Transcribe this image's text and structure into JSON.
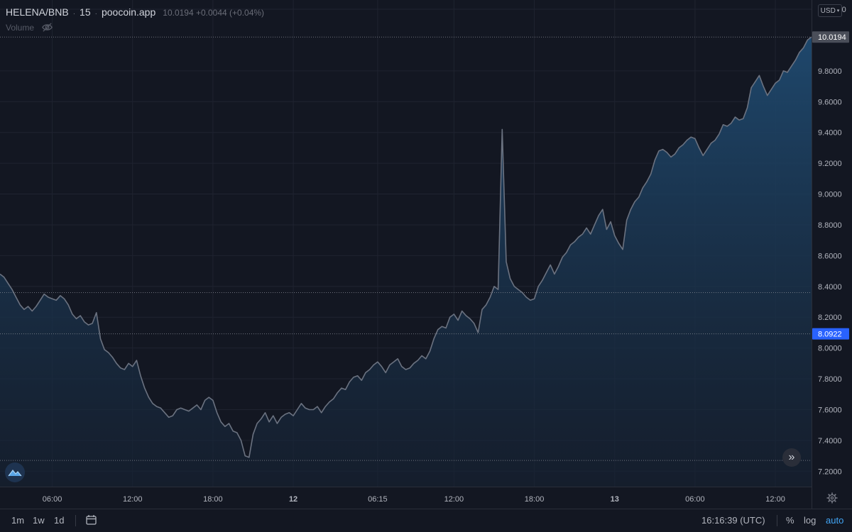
{
  "header": {
    "pair": "HELENA/BNB",
    "interval": "15",
    "source": "poocoin.app",
    "quote": "10.0194 +0.0044 (+0.04%)",
    "volume_label": "Volume"
  },
  "currency": "USD",
  "price_markers": {
    "last_price": "10.0194",
    "crosshair_price": "8.0922"
  },
  "bottom_bar": {
    "ranges": [
      "1m",
      "1w",
      "1d"
    ],
    "time": "16:16:39 (UTC)",
    "percent": "%",
    "log": "log",
    "auto": "auto"
  },
  "colors": {
    "background": "#131722",
    "line": "#6b7280",
    "area_top": "#1e4466",
    "accent": "#2962ff",
    "last_price_badge": "#4a4e59",
    "crosshair_badge": "#2962ff"
  },
  "chart_data": {
    "type": "area",
    "title": "",
    "xlabel": "",
    "ylabel": "",
    "ylim": [
      7.1,
      10.26
    ],
    "y_ticks": [
      "10.2000",
      "9.8000",
      "9.6000",
      "9.4000",
      "9.2000",
      "9.0000",
      "8.8000",
      "8.6000",
      "8.4000",
      "8.2000",
      "8.0000",
      "7.8000",
      "7.6000",
      "7.4000",
      "7.2000"
    ],
    "x_ticks": [
      "06:00",
      "12:00",
      "18:00",
      "12",
      "06:15",
      "12:00",
      "18:00",
      "13",
      "06:00",
      "12:00"
    ],
    "x_tick_bold": [
      false,
      false,
      false,
      true,
      false,
      false,
      false,
      true,
      false,
      false
    ],
    "x_tick_index": [
      13,
      33,
      53,
      73,
      94,
      113,
      133,
      153,
      173,
      193
    ],
    "horizontal_lines": [
      10.0194,
      8.36,
      8.0922,
      7.27
    ],
    "series": [
      {
        "values": [
          8.48,
          8.46,
          8.42,
          8.38,
          8.33,
          8.28,
          8.25,
          8.27,
          8.24,
          8.27,
          8.31,
          8.35,
          8.33,
          8.32,
          8.31,
          8.34,
          8.32,
          8.28,
          8.22,
          8.19,
          8.21,
          8.17,
          8.15,
          8.16,
          8.23,
          8.06,
          7.99,
          7.97,
          7.94,
          7.9,
          7.87,
          7.86,
          7.9,
          7.88,
          7.92,
          7.82,
          7.74,
          7.68,
          7.64,
          7.62,
          7.61,
          7.58,
          7.55,
          7.56,
          7.6,
          7.61,
          7.6,
          7.59,
          7.61,
          7.63,
          7.6,
          7.66,
          7.68,
          7.66,
          7.58,
          7.52,
          7.49,
          7.51,
          7.46,
          7.45,
          7.4,
          7.3,
          7.29,
          7.44,
          7.51,
          7.54,
          7.58,
          7.52,
          7.56,
          7.51,
          7.55,
          7.57,
          7.58,
          7.56,
          7.6,
          7.64,
          7.61,
          7.6,
          7.6,
          7.62,
          7.58,
          7.62,
          7.65,
          7.67,
          7.71,
          7.74,
          7.73,
          7.78,
          7.81,
          7.82,
          7.79,
          7.84,
          7.86,
          7.89,
          7.91,
          7.88,
          7.84,
          7.89,
          7.91,
          7.93,
          7.88,
          7.86,
          7.87,
          7.9,
          7.92,
          7.95,
          7.93,
          7.98,
          8.06,
          8.12,
          8.14,
          8.13,
          8.2,
          8.22,
          8.18,
          8.24,
          8.21,
          8.19,
          8.16,
          8.1,
          8.25,
          8.28,
          8.33,
          8.4,
          8.38,
          9.42,
          8.56,
          8.45,
          8.4,
          8.38,
          8.36,
          8.33,
          8.31,
          8.32,
          8.4,
          8.44,
          8.49,
          8.54,
          8.48,
          8.53,
          8.59,
          8.62,
          8.67,
          8.69,
          8.72,
          8.74,
          8.78,
          8.74,
          8.8,
          8.86,
          8.9,
          8.77,
          8.82,
          8.73,
          8.68,
          8.64,
          8.83,
          8.9,
          8.95,
          8.98,
          9.04,
          9.08,
          9.13,
          9.22,
          9.28,
          9.29,
          9.27,
          9.24,
          9.26,
          9.3,
          9.32,
          9.35,
          9.37,
          9.36,
          9.3,
          9.25,
          9.29,
          9.33,
          9.35,
          9.39,
          9.45,
          9.44,
          9.46,
          9.5,
          9.48,
          9.49,
          9.56,
          9.69,
          9.73,
          9.77,
          9.7,
          9.64,
          9.68,
          9.72,
          9.74,
          9.8,
          9.79,
          9.83,
          9.87,
          9.92,
          9.95,
          10.0,
          10.02
        ]
      }
    ]
  }
}
